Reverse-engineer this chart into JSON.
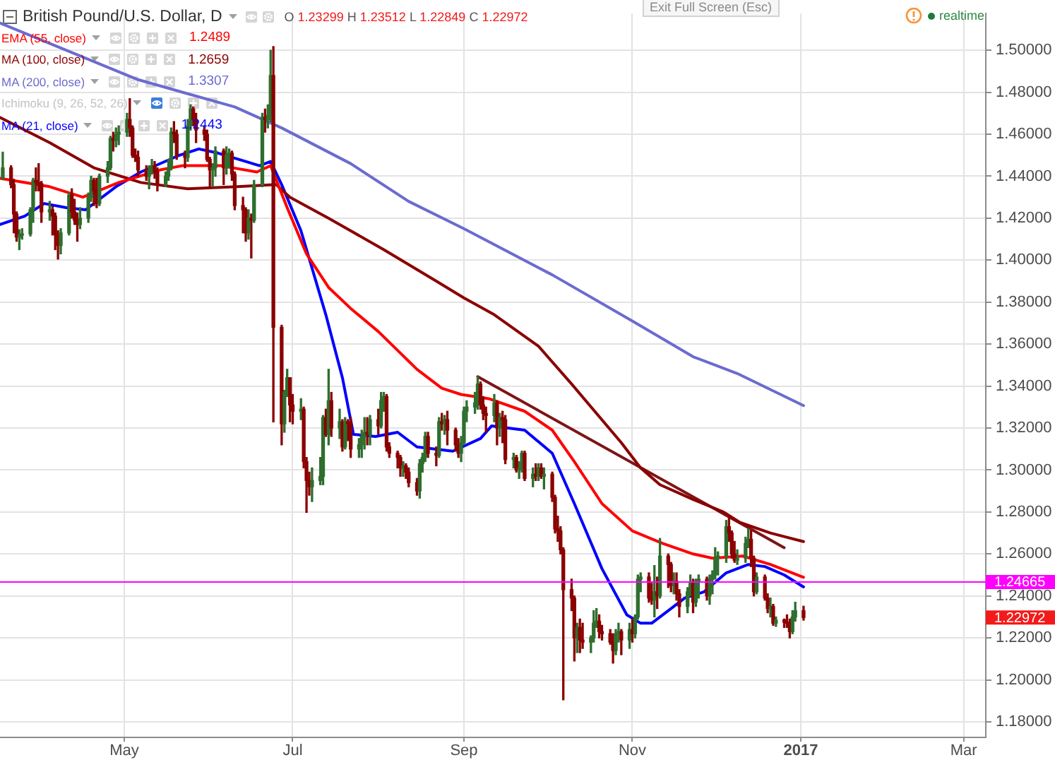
{
  "chart_data": {
    "type": "candlestick",
    "title": "British Pound/U.S. Dollar, D",
    "subtitle": "O 1.23299 H 1.23512 L 1.22849 C 1.22972",
    "x": [
      "2016-03-18",
      "2016-03-21",
      "2016-03-22",
      "2016-03-23",
      "2016-03-24",
      "2016-03-25",
      "2016-03-28",
      "2016-03-29",
      "2016-03-30",
      "2016-03-31",
      "2016-04-01",
      "2016-04-04",
      "2016-04-05",
      "2016-04-06",
      "2016-04-07",
      "2016-04-08",
      "2016-04-11",
      "2016-04-12",
      "2016-04-13",
      "2016-04-14",
      "2016-04-15",
      "2016-04-18",
      "2016-04-19",
      "2016-04-20",
      "2016-04-21",
      "2016-04-22",
      "2016-04-25",
      "2016-04-26",
      "2016-04-27",
      "2016-04-28",
      "2016-04-29",
      "2016-05-02",
      "2016-05-03",
      "2016-05-04",
      "2016-05-05",
      "2016-05-06",
      "2016-05-09",
      "2016-05-10",
      "2016-05-11",
      "2016-05-12",
      "2016-05-13",
      "2016-05-16",
      "2016-05-17",
      "2016-05-18",
      "2016-05-19",
      "2016-05-20",
      "2016-05-23",
      "2016-05-24",
      "2016-05-25",
      "2016-05-26",
      "2016-05-27",
      "2016-05-30",
      "2016-05-31",
      "2016-06-01",
      "2016-06-02",
      "2016-06-03",
      "2016-06-06",
      "2016-06-07",
      "2016-06-08",
      "2016-06-09",
      "2016-06-10",
      "2016-06-13",
      "2016-06-14",
      "2016-06-15",
      "2016-06-16",
      "2016-06-17",
      "2016-06-20",
      "2016-06-21",
      "2016-06-22",
      "2016-06-23",
      "2016-06-24",
      "2016-06-27",
      "2016-06-28",
      "2016-06-29",
      "2016-06-30",
      "2016-07-01",
      "2016-07-04",
      "2016-07-05",
      "2016-07-06",
      "2016-07-07",
      "2016-07-08",
      "2016-07-11",
      "2016-07-12",
      "2016-07-13",
      "2016-07-14",
      "2016-07-15",
      "2016-07-18",
      "2016-07-19",
      "2016-07-20",
      "2016-07-21",
      "2016-07-22",
      "2016-07-25",
      "2016-07-26",
      "2016-07-27",
      "2016-07-28",
      "2016-07-29",
      "2016-08-01",
      "2016-08-02",
      "2016-08-03",
      "2016-08-04",
      "2016-08-05",
      "2016-08-08",
      "2016-08-09",
      "2016-08-10",
      "2016-08-11",
      "2016-08-12",
      "2016-08-15",
      "2016-08-16",
      "2016-08-17",
      "2016-08-18",
      "2016-08-19",
      "2016-08-22",
      "2016-08-23",
      "2016-08-24",
      "2016-08-25",
      "2016-08-26",
      "2016-08-29",
      "2016-08-30",
      "2016-08-31",
      "2016-09-01",
      "2016-09-02",
      "2016-09-05",
      "2016-09-06",
      "2016-09-07",
      "2016-09-08",
      "2016-09-09",
      "2016-09-12",
      "2016-09-13",
      "2016-09-14",
      "2016-09-15",
      "2016-09-16",
      "2016-09-19",
      "2016-09-20",
      "2016-09-21",
      "2016-09-22",
      "2016-09-23",
      "2016-09-26",
      "2016-09-27",
      "2016-09-28",
      "2016-09-29",
      "2016-09-30",
      "2016-10-03",
      "2016-10-04",
      "2016-10-05",
      "2016-10-06",
      "2016-10-07",
      "2016-10-10",
      "2016-10-11",
      "2016-10-12",
      "2016-10-13",
      "2016-10-14",
      "2016-10-17",
      "2016-10-18",
      "2016-10-19",
      "2016-10-20",
      "2016-10-21",
      "2016-10-24",
      "2016-10-25",
      "2016-10-26",
      "2016-10-27",
      "2016-10-28",
      "2016-10-31",
      "2016-11-01",
      "2016-11-02",
      "2016-11-03",
      "2016-11-04",
      "2016-11-07",
      "2016-11-08",
      "2016-11-09",
      "2016-11-10",
      "2016-11-11",
      "2016-11-14",
      "2016-11-15",
      "2016-11-16",
      "2016-11-17",
      "2016-11-18",
      "2016-11-21",
      "2016-11-22",
      "2016-11-23",
      "2016-11-24",
      "2016-11-25",
      "2016-11-28",
      "2016-11-29",
      "2016-11-30",
      "2016-12-01",
      "2016-12-02",
      "2016-12-05",
      "2016-12-06",
      "2016-12-07",
      "2016-12-08",
      "2016-12-09",
      "2016-12-12",
      "2016-12-13",
      "2016-12-14",
      "2016-12-15",
      "2016-12-16",
      "2016-12-19",
      "2016-12-20",
      "2016-12-21",
      "2016-12-22",
      "2016-12-23",
      "2016-12-26",
      "2016-12-27",
      "2016-12-28",
      "2016-12-29",
      "2016-12-30",
      "2017-01-02"
    ],
    "ohlc": [
      [
        1.439,
        1.4515,
        1.4385,
        1.444
      ],
      [
        1.444,
        1.445,
        1.4345,
        1.436
      ],
      [
        1.436,
        1.4385,
        1.413,
        1.422
      ],
      [
        1.422,
        1.423,
        1.409,
        1.411
      ],
      [
        1.411,
        1.4145,
        1.405,
        1.412
      ],
      [
        1.412,
        1.415,
        1.41,
        1.4125
      ],
      [
        1.4125,
        1.425,
        1.4115,
        1.424
      ],
      [
        1.424,
        1.439,
        1.418,
        1.438
      ],
      [
        1.438,
        1.444,
        1.433,
        1.437
      ],
      [
        1.437,
        1.446,
        1.433,
        1.4365
      ],
      [
        1.4365,
        1.4375,
        1.418,
        1.423
      ],
      [
        1.423,
        1.428,
        1.419,
        1.424
      ],
      [
        1.424,
        1.4255,
        1.412,
        1.421
      ],
      [
        1.421,
        1.4225,
        1.405,
        1.412
      ],
      [
        1.412,
        1.414,
        1.4005,
        1.407
      ],
      [
        1.407,
        1.415,
        1.403,
        1.413
      ],
      [
        1.413,
        1.432,
        1.412,
        1.431
      ],
      [
        1.431,
        1.434,
        1.42,
        1.423
      ],
      [
        1.423,
        1.429,
        1.417,
        1.419
      ],
      [
        1.419,
        1.4225,
        1.409,
        1.417
      ],
      [
        1.417,
        1.425,
        1.415,
        1.42
      ],
      [
        1.42,
        1.432,
        1.418,
        1.43
      ],
      [
        1.43,
        1.44,
        1.428,
        1.438
      ],
      [
        1.438,
        1.439,
        1.426,
        1.433
      ],
      [
        1.433,
        1.439,
        1.425,
        1.427
      ],
      [
        1.427,
        1.441,
        1.426,
        1.44
      ],
      [
        1.44,
        1.447,
        1.437,
        1.444
      ],
      [
        1.444,
        1.459,
        1.443,
        1.458
      ],
      [
        1.458,
        1.461,
        1.452,
        1.457
      ],
      [
        1.457,
        1.463,
        1.454,
        1.46
      ],
      [
        1.46,
        1.464,
        1.455,
        1.461
      ],
      [
        1.461,
        1.47,
        1.459,
        1.467
      ],
      [
        1.467,
        1.477,
        1.459,
        1.463
      ],
      [
        1.463,
        1.464,
        1.449,
        1.45
      ],
      [
        1.45,
        1.453,
        1.447,
        1.449
      ],
      [
        1.449,
        1.452,
        1.44,
        1.443
      ],
      [
        1.443,
        1.445,
        1.438,
        1.44
      ],
      [
        1.44,
        1.445,
        1.434,
        1.443
      ],
      [
        1.443,
        1.448,
        1.441,
        1.445
      ],
      [
        1.445,
        1.447,
        1.439,
        1.442
      ],
      [
        1.442,
        1.444,
        1.433,
        1.436
      ],
      [
        1.436,
        1.442,
        1.435,
        1.44
      ],
      [
        1.44,
        1.448,
        1.438,
        1.444
      ],
      [
        1.444,
        1.463,
        1.443,
        1.461
      ],
      [
        1.461,
        1.466,
        1.456,
        1.46
      ],
      [
        1.46,
        1.462,
        1.448,
        1.45
      ],
      [
        1.45,
        1.452,
        1.444,
        1.449
      ],
      [
        1.449,
        1.467,
        1.447,
        1.464
      ],
      [
        1.464,
        1.474,
        1.462,
        1.472
      ],
      [
        1.472,
        1.473,
        1.464,
        1.467
      ],
      [
        1.467,
        1.47,
        1.456,
        1.462
      ],
      [
        1.462,
        1.464,
        1.457,
        1.46
      ],
      [
        1.46,
        1.462,
        1.447,
        1.448
      ],
      [
        1.448,
        1.449,
        1.435,
        1.443
      ],
      [
        1.443,
        1.446,
        1.435,
        1.444
      ],
      [
        1.444,
        1.454,
        1.44,
        1.452
      ],
      [
        1.452,
        1.453,
        1.436,
        1.444
      ],
      [
        1.444,
        1.454,
        1.441,
        1.45
      ],
      [
        1.45,
        1.453,
        1.444,
        1.451
      ],
      [
        1.451,
        1.452,
        1.438,
        1.441
      ],
      [
        1.441,
        1.442,
        1.424,
        1.426
      ],
      [
        1.426,
        1.43,
        1.413,
        1.424
      ],
      [
        1.424,
        1.425,
        1.409,
        1.413
      ],
      [
        1.413,
        1.424,
        1.41,
        1.42
      ],
      [
        1.42,
        1.422,
        1.401,
        1.419
      ],
      [
        1.419,
        1.438,
        1.418,
        1.436
      ],
      [
        1.436,
        1.47,
        1.435,
        1.468
      ],
      [
        1.468,
        1.472,
        1.461,
        1.467
      ],
      [
        1.467,
        1.474,
        1.463,
        1.469
      ],
      [
        1.469,
        1.5,
        1.466,
        1.488
      ],
      [
        1.488,
        1.5018,
        1.3229,
        1.368
      ],
      [
        1.368,
        1.369,
        1.312,
        1.322
      ],
      [
        1.322,
        1.338,
        1.318,
        1.337
      ],
      [
        1.337,
        1.348,
        1.335,
        1.344
      ],
      [
        1.344,
        1.344,
        1.323,
        1.331
      ],
      [
        1.331,
        1.336,
        1.322,
        1.328
      ],
      [
        1.328,
        1.334,
        1.324,
        1.329
      ],
      [
        1.329,
        1.33,
        1.301,
        1.304
      ],
      [
        1.304,
        1.306,
        1.2798,
        1.295
      ],
      [
        1.295,
        1.299,
        1.288,
        1.292
      ],
      [
        1.292,
        1.301,
        1.285,
        1.295
      ],
      [
        1.295,
        1.306,
        1.293,
        1.297
      ],
      [
        1.297,
        1.326,
        1.293,
        1.325
      ],
      [
        1.325,
        1.329,
        1.316,
        1.317
      ],
      [
        1.317,
        1.348,
        1.312,
        1.333
      ],
      [
        1.333,
        1.337,
        1.316,
        1.32
      ],
      [
        1.32,
        1.329,
        1.315,
        1.323
      ],
      [
        1.323,
        1.324,
        1.309,
        1.311
      ],
      [
        1.311,
        1.325,
        1.31,
        1.323
      ],
      [
        1.323,
        1.324,
        1.314,
        1.322
      ],
      [
        1.322,
        1.325,
        1.306,
        1.31
      ],
      [
        1.31,
        1.315,
        1.306,
        1.312
      ],
      [
        1.312,
        1.319,
        1.306,
        1.316
      ],
      [
        1.316,
        1.325,
        1.31,
        1.318
      ],
      [
        1.318,
        1.325,
        1.312,
        1.317
      ],
      [
        1.317,
        1.326,
        1.312,
        1.324
      ],
      [
        1.324,
        1.329,
        1.317,
        1.321
      ],
      [
        1.321,
        1.337,
        1.32,
        1.333
      ],
      [
        1.333,
        1.337,
        1.328,
        1.335
      ],
      [
        1.335,
        1.336,
        1.309,
        1.311
      ],
      [
        1.311,
        1.313,
        1.306,
        1.308
      ],
      [
        1.308,
        1.309,
        1.301,
        1.306
      ],
      [
        1.306,
        1.307,
        1.297,
        1.301
      ],
      [
        1.301,
        1.304,
        1.297,
        1.302
      ],
      [
        1.302,
        1.303,
        1.296,
        1.299
      ],
      [
        1.299,
        1.301,
        1.292,
        1.294
      ],
      [
        1.294,
        1.296,
        1.288,
        1.29
      ],
      [
        1.29,
        1.305,
        1.2866,
        1.303
      ],
      [
        1.303,
        1.308,
        1.299,
        1.306
      ],
      [
        1.306,
        1.318,
        1.304,
        1.316
      ],
      [
        1.316,
        1.318,
        1.306,
        1.308
      ],
      [
        1.308,
        1.311,
        1.302,
        1.307
      ],
      [
        1.307,
        1.325,
        1.306,
        1.323
      ],
      [
        1.323,
        1.327,
        1.319,
        1.322
      ],
      [
        1.322,
        1.326,
        1.317,
        1.324
      ],
      [
        1.324,
        1.328,
        1.312,
        1.319
      ],
      [
        1.319,
        1.32,
        1.309,
        1.312
      ],
      [
        1.312,
        1.315,
        1.306,
        1.308
      ],
      [
        1.308,
        1.316,
        1.304,
        1.313
      ],
      [
        1.313,
        1.33,
        1.312,
        1.328
      ],
      [
        1.328,
        1.333,
        1.323,
        1.33
      ],
      [
        1.33,
        1.337,
        1.327,
        1.332
      ],
      [
        1.332,
        1.3445,
        1.329,
        1.341
      ],
      [
        1.341,
        1.342,
        1.329,
        1.331
      ],
      [
        1.331,
        1.335,
        1.324,
        1.327
      ],
      [
        1.327,
        1.33,
        1.318,
        1.326
      ],
      [
        1.326,
        1.336,
        1.323,
        1.332
      ],
      [
        1.332,
        1.333,
        1.312,
        1.32
      ],
      [
        1.32,
        1.327,
        1.316,
        1.325
      ],
      [
        1.325,
        1.328,
        1.313,
        1.324
      ],
      [
        1.324,
        1.326,
        1.303,
        1.305
      ],
      [
        1.305,
        1.308,
        1.301,
        1.306
      ],
      [
        1.306,
        1.307,
        1.299,
        1.3
      ],
      [
        1.3,
        1.304,
        1.296,
        1.301
      ],
      [
        1.301,
        1.309,
        1.299,
        1.308
      ],
      [
        1.308,
        1.309,
        1.295,
        1.296
      ],
      [
        1.296,
        1.301,
        1.292,
        1.298
      ],
      [
        1.298,
        1.303,
        1.295,
        1.297
      ],
      [
        1.297,
        1.303,
        1.295,
        1.301
      ],
      [
        1.301,
        1.303,
        1.296,
        1.297
      ],
      [
        1.297,
        1.301,
        1.291,
        1.298
      ],
      [
        1.298,
        1.299,
        1.285,
        1.287
      ],
      [
        1.287,
        1.288,
        1.27,
        1.272
      ],
      [
        1.272,
        1.278,
        1.266,
        1.271
      ],
      [
        1.271,
        1.273,
        1.26,
        1.262
      ],
      [
        1.262,
        1.263,
        1.1905,
        1.243
      ],
      [
        1.243,
        1.248,
        1.233,
        1.239
      ],
      [
        1.239,
        1.24,
        1.209,
        1.22
      ],
      [
        1.22,
        1.227,
        1.213,
        1.225
      ],
      [
        1.225,
        1.229,
        1.213,
        1.219
      ],
      [
        1.219,
        1.227,
        1.215,
        1.218
      ],
      [
        1.218,
        1.221,
        1.213,
        1.22
      ],
      [
        1.22,
        1.233,
        1.218,
        1.227
      ],
      [
        1.227,
        1.234,
        1.225,
        1.228
      ],
      [
        1.228,
        1.231,
        1.22,
        1.223
      ],
      [
        1.223,
        1.226,
        1.219,
        1.222
      ],
      [
        1.222,
        1.224,
        1.217,
        1.218
      ],
      [
        1.218,
        1.222,
        1.208,
        1.214
      ],
      [
        1.214,
        1.224,
        1.212,
        1.222
      ],
      [
        1.222,
        1.227,
        1.218,
        1.223
      ],
      [
        1.223,
        1.224,
        1.212,
        1.219
      ],
      [
        1.219,
        1.227,
        1.215,
        1.224
      ],
      [
        1.224,
        1.229,
        1.218,
        1.222
      ],
      [
        1.222,
        1.231,
        1.22,
        1.23
      ],
      [
        1.23,
        1.25,
        1.229,
        1.248
      ],
      [
        1.248,
        1.251,
        1.242,
        1.249
      ],
      [
        1.249,
        1.251,
        1.237,
        1.239
      ],
      [
        1.239,
        1.246,
        1.236,
        1.238
      ],
      [
        1.238,
        1.2545,
        1.23,
        1.242
      ],
      [
        1.242,
        1.249,
        1.234,
        1.24
      ],
      [
        1.24,
        1.2674,
        1.239,
        1.259
      ],
      [
        1.259,
        1.26,
        1.244,
        1.255
      ],
      [
        1.255,
        1.256,
        1.242,
        1.245
      ],
      [
        1.245,
        1.251,
        1.241,
        1.247
      ],
      [
        1.247,
        1.251,
        1.238,
        1.241
      ],
      [
        1.241,
        1.243,
        1.23,
        1.235
      ],
      [
        1.235,
        1.244,
        1.232,
        1.242
      ],
      [
        1.242,
        1.25,
        1.24,
        1.246
      ],
      [
        1.246,
        1.248,
        1.232,
        1.237
      ],
      [
        1.237,
        1.248,
        1.235,
        1.247
      ],
      [
        1.247,
        1.25,
        1.239,
        1.248
      ],
      [
        1.248,
        1.249,
        1.238,
        1.24
      ],
      [
        1.24,
        1.25,
        1.236,
        1.248
      ],
      [
        1.248,
        1.252,
        1.241,
        1.25
      ],
      [
        1.25,
        1.263,
        1.248,
        1.258
      ],
      [
        1.258,
        1.261,
        1.25,
        1.259
      ],
      [
        1.259,
        1.276,
        1.256,
        1.273
      ],
      [
        1.273,
        1.2775,
        1.266,
        1.27
      ],
      [
        1.27,
        1.271,
        1.258,
        1.26
      ],
      [
        1.26,
        1.266,
        1.256,
        1.257
      ],
      [
        1.257,
        1.262,
        1.255,
        1.258
      ],
      [
        1.258,
        1.268,
        1.256,
        1.265
      ],
      [
        1.265,
        1.272,
        1.263,
        1.267
      ],
      [
        1.267,
        1.271,
        1.254,
        1.258
      ],
      [
        1.258,
        1.259,
        1.24,
        1.242
      ],
      [
        1.242,
        1.251,
        1.241,
        1.249
      ],
      [
        1.249,
        1.25,
        1.238,
        1.239
      ],
      [
        1.239,
        1.241,
        1.232,
        1.234
      ],
      [
        1.234,
        1.239,
        1.23,
        1.235
      ],
      [
        1.235,
        1.236,
        1.226,
        1.227
      ],
      [
        1.227,
        1.23,
        1.2255,
        1.2285
      ],
      [
        1.2285,
        1.229,
        1.225,
        1.2275
      ],
      [
        1.2275,
        1.231,
        1.225,
        1.227
      ],
      [
        1.227,
        1.229,
        1.22,
        1.223
      ],
      [
        1.223,
        1.233,
        1.222,
        1.23
      ],
      [
        1.23,
        1.237,
        1.228,
        1.233
      ],
      [
        1.23299,
        1.23512,
        1.22849,
        1.22972
      ]
    ],
    "colors": [
      "#2e6e2e",
      "#8b0000",
      "#8b0000",
      "#8b0000",
      "#2e6e2e",
      "#2e6e2e",
      "#2e6e2e",
      "#2e6e2e",
      "#8b0000",
      "#8b0000",
      "#8b0000",
      "#2e6e2e",
      "#8b0000",
      "#8b0000",
      "#8b0000",
      "#2e6e2e",
      "#2e6e2e",
      "#8b0000",
      "#8b0000",
      "#8b0000",
      "#2e6e2e",
      "#2e6e2e",
      "#2e6e2e",
      "#8b0000",
      "#8b0000",
      "#2e6e2e",
      "#2e6e2e",
      "#2e6e2e",
      "#8b0000",
      "#2e6e2e",
      "#2e6e2e",
      "#2e6e2e",
      "#8b0000",
      "#8b0000",
      "#8b0000",
      "#8b0000",
      "#8b0000",
      "#2e6e2e",
      "#2e6e2e",
      "#8b0000",
      "#8b0000",
      "#2e6e2e",
      "#2e6e2e",
      "#2e6e2e",
      "#8b0000",
      "#8b0000",
      "#8b0000",
      "#2e6e2e",
      "#2e6e2e",
      "#8b0000",
      "#8b0000",
      "#8b0000",
      "#8b0000",
      "#8b0000",
      "#2e6e2e",
      "#2e6e2e",
      "#8b0000",
      "#2e6e2e",
      "#2e6e2e",
      "#8b0000",
      "#8b0000",
      "#8b0000",
      "#8b0000",
      "#2e6e2e",
      "#8b0000",
      "#2e6e2e",
      "#2e6e2e",
      "#8b0000",
      "#2e6e2e",
      "#2e6e2e",
      "#8b0000",
      "#8b0000",
      "#2e6e2e",
      "#2e6e2e",
      "#8b0000",
      "#8b0000",
      "#2e6e2e",
      "#8b0000",
      "#8b0000",
      "#8b0000",
      "#2e6e2e",
      "#2e6e2e",
      "#2e6e2e",
      "#8b0000",
      "#2e6e2e",
      "#8b0000",
      "#2e6e2e",
      "#8b0000",
      "#2e6e2e",
      "#8b0000",
      "#8b0000",
      "#2e6e2e",
      "#2e6e2e",
      "#2e6e2e",
      "#8b0000",
      "#2e6e2e",
      "#8b0000",
      "#2e6e2e",
      "#2e6e2e",
      "#8b0000",
      "#8b0000",
      "#8b0000",
      "#8b0000",
      "#2e6e2e",
      "#8b0000",
      "#8b0000",
      "#8b0000",
      "#2e6e2e",
      "#2e6e2e",
      "#2e6e2e",
      "#8b0000",
      "#8b0000",
      "#2e6e2e",
      "#8b0000",
      "#2e6e2e",
      "#8b0000",
      "#8b0000",
      "#8b0000",
      "#2e6e2e",
      "#2e6e2e",
      "#2e6e2e",
      "#2e6e2e",
      "#2e6e2e",
      "#8b0000",
      "#8b0000",
      "#8b0000",
      "#2e6e2e",
      "#8b0000",
      "#2e6e2e",
      "#8b0000",
      "#8b0000",
      "#2e6e2e",
      "#8b0000",
      "#2e6e2e",
      "#2e6e2e",
      "#8b0000",
      "#2e6e2e",
      "#8b0000",
      "#2e6e2e",
      "#8b0000",
      "#2e6e2e",
      "#8b0000",
      "#8b0000",
      "#8b0000",
      "#8b0000",
      "#8b0000",
      "#8b0000",
      "#8b0000",
      "#2e6e2e",
      "#8b0000",
      "#8b0000",
      "#2e6e2e",
      "#2e6e2e",
      "#2e6e2e",
      "#8b0000",
      "#8b0000",
      "#8b0000",
      "#8b0000",
      "#2e6e2e",
      "#2e6e2e",
      "#8b0000",
      "#2e6e2e",
      "#8b0000",
      "#2e6e2e",
      "#2e6e2e",
      "#2e6e2e",
      "#8b0000",
      "#8b0000",
      "#2e6e2e",
      "#8b0000",
      "#2e6e2e",
      "#8b0000",
      "#8b0000",
      "#2e6e2e",
      "#8b0000",
      "#8b0000",
      "#2e6e2e",
      "#2e6e2e",
      "#8b0000",
      "#2e6e2e",
      "#2e6e2e",
      "#8b0000",
      "#2e6e2e",
      "#2e6e2e",
      "#2e6e2e",
      "#2e6e2e",
      "#2e6e2e",
      "#8b0000",
      "#8b0000",
      "#8b0000",
      "#2e6e2e",
      "#2e6e2e",
      "#2e6e2e",
      "#8b0000",
      "#8b0000",
      "#2e6e2e",
      "#8b0000",
      "#8b0000",
      "#2e6e2e",
      "#8b0000",
      "#2e6e2e",
      "#8b0000",
      "#8b0000",
      "#8b0000",
      "#2e6e2e",
      "#2e6e2e",
      "#8b0000"
    ],
    "series": [
      {
        "name": "EMA (55, close)",
        "type": "line",
        "color": "#ff0000",
        "x": [
          "2016-03-17",
          "2016-04-04",
          "2016-04-16",
          "2016-04-29",
          "2016-05-14",
          "2016-05-22",
          "2016-06-05",
          "2016-06-18",
          "2016-06-23",
          "2016-06-29",
          "2016-07-06",
          "2016-07-14",
          "2016-07-22",
          "2016-08-01",
          "2016-08-15",
          "2016-08-24",
          "2016-08-31",
          "2016-09-10",
          "2016-09-23",
          "2016-10-03",
          "2016-10-11",
          "2016-10-21",
          "2016-11-01",
          "2016-11-12",
          "2016-11-23",
          "2016-11-30",
          "2016-12-11",
          "2016-12-21",
          "2017-01-02"
        ],
        "values": [
          1.439,
          1.435,
          1.43,
          1.437,
          1.443,
          1.445,
          1.445,
          1.442,
          1.445,
          1.425,
          1.403,
          1.387,
          1.377,
          1.366,
          1.348,
          1.339,
          1.336,
          1.334,
          1.328,
          1.319,
          1.304,
          1.284,
          1.271,
          1.265,
          1.26,
          1.258,
          1.259,
          1.255,
          1.2489
        ]
      },
      {
        "name": "MA (100, close)",
        "type": "line",
        "color": "#8b0000",
        "x": [
          "2016-03-17",
          "2016-04-04",
          "2016-04-20",
          "2016-05-07",
          "2016-05-24",
          "2016-06-11",
          "2016-06-25",
          "2016-06-30",
          "2016-07-14",
          "2016-07-22",
          "2016-08-03",
          "2016-08-22",
          "2016-09-01",
          "2016-09-12",
          "2016-09-28",
          "2016-10-10",
          "2016-10-28",
          "2016-11-04",
          "2016-11-11",
          "2016-11-23",
          "2016-12-04",
          "2016-12-10",
          "2016-12-21",
          "2017-01-02"
        ],
        "values": [
          1.468,
          1.456,
          1.444,
          1.437,
          1.434,
          1.435,
          1.436,
          1.43,
          1.42,
          1.414,
          1.405,
          1.39,
          1.382,
          1.374,
          1.359,
          1.341,
          1.313,
          1.301,
          1.293,
          1.286,
          1.28,
          1.275,
          1.27,
          1.2659
        ]
      },
      {
        "name": "MA (200, close)",
        "type": "line",
        "color": "#6b6bd0",
        "x": [
          "2016-03-17",
          "2016-05-06",
          "2016-06-10",
          "2016-06-27",
          "2016-07-22",
          "2016-08-12",
          "2016-09-01",
          "2016-10-03",
          "2016-11-01",
          "2016-11-23",
          "2016-12-09",
          "2017-01-02"
        ],
        "values": [
          1.513,
          1.486,
          1.473,
          1.463,
          1.446,
          1.428,
          1.415,
          1.393,
          1.371,
          1.354,
          1.346,
          1.3307
        ]
      },
      {
        "name": "MA (21, close)",
        "type": "line",
        "color": "#0000ff",
        "x": [
          "2016-03-17",
          "2016-03-26",
          "2016-04-02",
          "2016-04-10",
          "2016-04-17",
          "2016-04-28",
          "2016-05-07",
          "2016-05-21",
          "2016-05-28",
          "2016-06-04",
          "2016-06-14",
          "2016-06-19",
          "2016-06-23",
          "2016-06-27",
          "2016-07-04",
          "2016-07-13",
          "2016-07-19",
          "2016-07-23",
          "2016-07-31",
          "2016-08-08",
          "2016-08-15",
          "2016-08-28",
          "2016-09-07",
          "2016-09-11",
          "2016-09-23",
          "2016-10-03",
          "2016-10-11",
          "2016-10-21",
          "2016-10-30",
          "2016-11-04",
          "2016-11-08",
          "2016-11-15",
          "2016-11-20",
          "2016-11-27",
          "2016-12-05",
          "2016-12-13",
          "2016-12-19",
          "2016-12-26",
          "2017-01-02"
        ],
        "values": [
          1.417,
          1.421,
          1.427,
          1.425,
          1.424,
          1.435,
          1.442,
          1.45,
          1.453,
          1.451,
          1.447,
          1.445,
          1.447,
          1.436,
          1.414,
          1.374,
          1.344,
          1.317,
          1.316,
          1.318,
          1.311,
          1.309,
          1.315,
          1.321,
          1.319,
          1.308,
          1.284,
          1.253,
          1.231,
          1.227,
          1.227,
          1.234,
          1.239,
          1.242,
          1.251,
          1.255,
          1.254,
          1.25,
          1.2443
        ]
      },
      {
        "type": "line",
        "color": "#7f1416",
        "x": [
          "2016-09-06",
          "2016-12-26"
        ],
        "values": [
          1.3445,
          1.263
        ]
      }
    ],
    "xlim": [
      "2016-03-17",
      "2017-03-09"
    ],
    "xticks": [
      {
        "value": "2016-05-01",
        "label": "May"
      },
      {
        "value": "2016-07-01",
        "label": "Jul"
      },
      {
        "value": "2016-09-01",
        "label": "Sep"
      },
      {
        "value": "2016-11-01",
        "label": "Nov"
      },
      {
        "value": "2017-01-01",
        "label": "2017"
      },
      {
        "value": "2017-03-01",
        "label": "Mar"
      }
    ],
    "ylim": [
      1.1726,
      1.5175
    ],
    "yticks": [
      {
        "value": 1.18,
        "label": "1.18000"
      },
      {
        "value": 1.2,
        "label": "1.20000"
      },
      {
        "value": 1.22,
        "label": "1.22000"
      },
      {
        "value": 1.24,
        "label": "1.24000"
      },
      {
        "value": 1.26,
        "label": "1.26000"
      },
      {
        "value": 1.28,
        "label": "1.28000"
      },
      {
        "value": 1.3,
        "label": "1.30000"
      },
      {
        "value": 1.32,
        "label": "1.32000"
      },
      {
        "value": 1.34,
        "label": "1.34000"
      },
      {
        "value": 1.36,
        "label": "1.36000"
      },
      {
        "value": 1.38,
        "label": "1.38000"
      },
      {
        "value": 1.4,
        "label": "1.40000"
      },
      {
        "value": 1.42,
        "label": "1.42000"
      },
      {
        "value": 1.44,
        "label": "1.44000"
      },
      {
        "value": 1.46,
        "label": "1.46000"
      },
      {
        "value": 1.48,
        "label": "1.48000"
      },
      {
        "value": 1.5,
        "label": "1.50000"
      }
    ],
    "ref_lines": [
      {
        "axis": "y",
        "value": 1.24665,
        "label": "1.24665",
        "color": "#ff00ff"
      }
    ],
    "annotations": [
      "Ichimoku (9, 26, 52, 26)",
      "Exit Full Screen (Esc)",
      "realtime",
      "1.22972",
      "1.2489",
      "1.2659",
      "1.3307",
      "1.2443"
    ],
    "grid": true,
    "legend": "top left",
    "marker": "none"
  }
}
